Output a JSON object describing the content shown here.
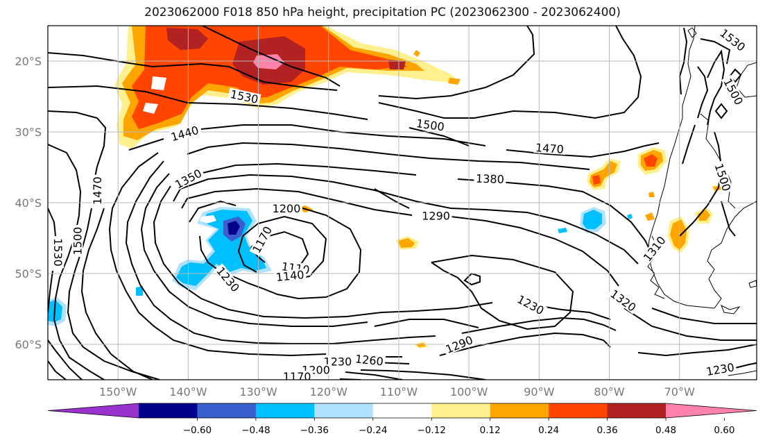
{
  "title": "2023062000 F018 850 hPa height, precipitation PC (2023062300 - 2023062400)",
  "map": {
    "projection": "plate-carree",
    "lon_range": [
      -160,
      -59
    ],
    "lat_range": [
      -65,
      -15
    ],
    "lon_ticks": [
      {
        "value": -150,
        "label": "150°W"
      },
      {
        "value": -140,
        "label": "140°W"
      },
      {
        "value": -130,
        "label": "130°W"
      },
      {
        "value": -120,
        "label": "120°W"
      },
      {
        "value": -110,
        "label": "110°W"
      },
      {
        "value": -100,
        "label": "100°W"
      },
      {
        "value": -90,
        "label": "90°W"
      },
      {
        "value": -80,
        "label": "80°W"
      },
      {
        "value": -70,
        "label": "70°W"
      }
    ],
    "lat_ticks": [
      {
        "value": -20,
        "label": "20°S"
      },
      {
        "value": -30,
        "label": "30°S"
      },
      {
        "value": -40,
        "label": "40°S"
      },
      {
        "value": -50,
        "label": "50°S"
      },
      {
        "value": -60,
        "label": "60°S"
      }
    ],
    "grid": true,
    "contour_labels": [
      {
        "text": "1530",
        "lon": -132,
        "lat": -25.0,
        "rot": 12
      },
      {
        "text": "1500",
        "lon": -105.5,
        "lat": -29.0,
        "rot": 8
      },
      {
        "text": "1470",
        "lon": -88.5,
        "lat": -32.3,
        "rot": 4
      },
      {
        "text": "1440",
        "lon": -140.5,
        "lat": -30.2,
        "rot": -16
      },
      {
        "text": "1380",
        "lon": -97,
        "lat": -36.6,
        "rot": 2
      },
      {
        "text": "1350",
        "lon": -140,
        "lat": -36.6,
        "rot": -28
      },
      {
        "text": "1290",
        "lon": -104.7,
        "lat": -41.8,
        "rot": 0
      },
      {
        "text": "1200",
        "lon": -126,
        "lat": -40.8,
        "rot": 0
      },
      {
        "text": "1170",
        "lon": -129.5,
        "lat": -45.2,
        "rot": -62
      },
      {
        "text": "1110",
        "lon": -124.7,
        "lat": -49.2,
        "rot": 8
      },
      {
        "text": "1140",
        "lon": -125.5,
        "lat": -50.3,
        "rot": -6
      },
      {
        "text": "1230",
        "lon": -134.3,
        "lat": -50.8,
        "rot": 50
      },
      {
        "text": "1230",
        "lon": -91.2,
        "lat": -54.4,
        "rot": 28
      },
      {
        "text": "1320",
        "lon": -78,
        "lat": -53.8,
        "rot": 36
      },
      {
        "text": "1310",
        "lon": -73.6,
        "lat": -46.5,
        "rot": -52
      },
      {
        "text": "1290",
        "lon": -101.4,
        "lat": -60.0,
        "rot": -22
      },
      {
        "text": "1260",
        "lon": -114.2,
        "lat": -62.2,
        "rot": 6
      },
      {
        "text": "1230",
        "lon": -118.7,
        "lat": -62.4,
        "rot": 0
      },
      {
        "text": "1200",
        "lon": -121.8,
        "lat": -63.6,
        "rot": 0
      },
      {
        "text": "1170",
        "lon": -124.5,
        "lat": -64.5,
        "rot": 0
      },
      {
        "text": "1230",
        "lon": -64.2,
        "lat": -63.5,
        "rot": -10
      },
      {
        "text": "1470",
        "lon": -153,
        "lat": -38.3,
        "rot": -90
      },
      {
        "text": "1500",
        "lon": -155.8,
        "lat": -45.4,
        "rot": -90
      },
      {
        "text": "1530",
        "lon": -158.5,
        "lat": -47.0,
        "rot": 90
      },
      {
        "text": "1500",
        "lon": -63.8,
        "lat": -36.4,
        "rot": 72
      },
      {
        "text": "1500",
        "lon": -62.3,
        "lat": -24.3,
        "rot": 62
      },
      {
        "text": "1530",
        "lon": -62.4,
        "lat": -17.0,
        "rot": 38
      }
    ]
  },
  "colorbar": {
    "colors": [
      "#9a32cd",
      "#00008b",
      "#3a5fcd",
      "#00bfff",
      "#b0e2ff",
      "#ffffff",
      "#fff08f",
      "#ffa500",
      "#ff4500",
      "#b22222",
      "#ff82ab"
    ],
    "tick_labels": [
      "-0.60",
      "-0.48",
      "-0.36",
      "-0.24",
      "-0.12",
      "0.12",
      "0.24",
      "0.36",
      "0.48",
      "0.60"
    ],
    "extend": "both"
  }
}
